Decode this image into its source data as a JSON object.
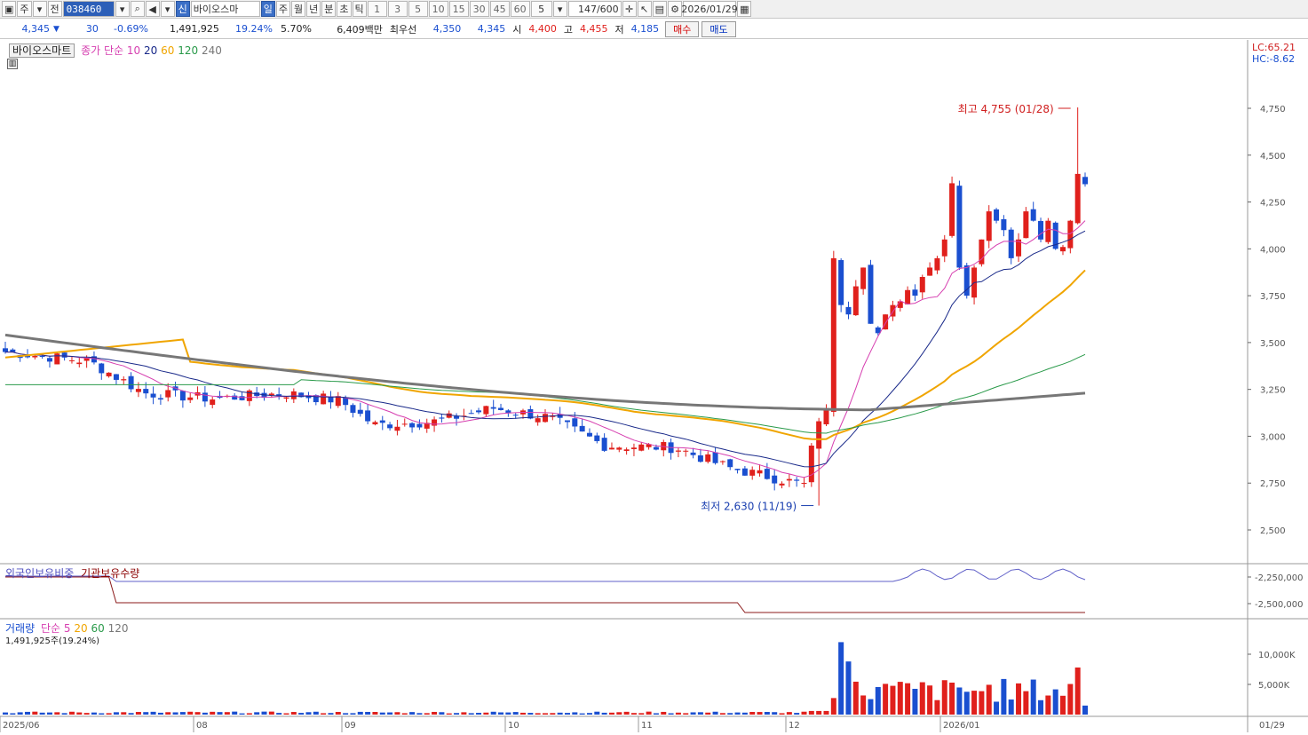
{
  "toolbar": {
    "market": "주",
    "prev": "전",
    "code": "038460",
    "new_badge": "신",
    "stock_name": "바이오스마",
    "periods": [
      "일",
      "주",
      "월",
      "년",
      "분",
      "초",
      "틱"
    ],
    "intervals": [
      "1",
      "3",
      "5",
      "10",
      "15",
      "30",
      "45",
      "60"
    ],
    "dropdown_value": "5",
    "count": "147/600",
    "date": "2026/01/29"
  },
  "quote": {
    "price": "4,345",
    "change": "30",
    "change_pct": "-0.69%",
    "volume": "1,491,925",
    "turnover_pct": "19.24%",
    "rate2": "5.70%",
    "amount": "6,409백만",
    "best_label": "최우선",
    "best_ask": "4,350",
    "best_bid": "4,345",
    "open_label": "시",
    "open": "4,400",
    "high_label": "고",
    "high": "4,455",
    "low_label": "저",
    "low": "4,185",
    "buy": "매수",
    "sell": "매도"
  },
  "price_panel": {
    "stock_tag": "바이오스마트",
    "ma_label": "종가 단순",
    "ma_periods": [
      "10",
      "20",
      "60",
      "120",
      "240"
    ],
    "lc": "LC:65.21",
    "hc": "HC:-8.62",
    "high_annotation": "최고 4,755 (01/28)",
    "low_annotation": "최저 2,630 (11/19)",
    "y_ticks": [
      "4,750",
      "4,500",
      "4,250",
      "4,000",
      "3,750",
      "3,500",
      "3,250",
      "3,000",
      "2,750",
      "2,500"
    ]
  },
  "holding_panel": {
    "foreign_label": "외국인보유비중",
    "inst_label": "기관보유수량",
    "y_ticks": [
      "-2,250,000",
      "-2,500,000"
    ]
  },
  "volume_panel": {
    "label": "거래량",
    "ma_label": "단순",
    "ma_periods": [
      "5",
      "20",
      "60",
      "120"
    ],
    "current": "1,491,925주(19.24%)",
    "y_ticks": [
      "10,000K",
      "5,000K"
    ]
  },
  "x_axis": {
    "labels": [
      "2025/06",
      "08",
      "09",
      "10",
      "11",
      "12",
      "2026/01"
    ],
    "right_label": "01/29"
  },
  "colors": {
    "up": "#e0201c",
    "down": "#1a4fd0",
    "ma10": "#d63fb0",
    "ma20": "#1a2a8a",
    "ma60": "#f0a500",
    "ma120": "#2a9a4a",
    "ma240": "#777777"
  }
}
